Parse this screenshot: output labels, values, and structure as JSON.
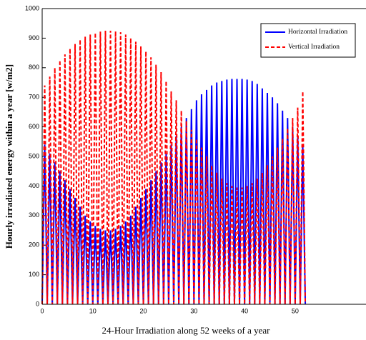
{
  "chart_data": {
    "type": "line",
    "x_label": "24-Hour Irradiation along 52 weeks of a year",
    "y_label": "Hourly irradiated energy within a year [w/m2]",
    "x": [
      0,
      0.5,
      1,
      1.5,
      2,
      2.5,
      3,
      3.5,
      4,
      4.5,
      5,
      5.5,
      6,
      6.5,
      7,
      7.5,
      8,
      8.5,
      9,
      9.5,
      10,
      10.5,
      11,
      11.5,
      12,
      12.5,
      13,
      13.5,
      14,
      14.5,
      15,
      15.5,
      16,
      16.5,
      17,
      17.5,
      18,
      18.5,
      19,
      19.5,
      20,
      20.5,
      21,
      21.5,
      22,
      22.5,
      23,
      23.5,
      24,
      24.5,
      25,
      25.5,
      26,
      26.5,
      27,
      27.5,
      28,
      28.5,
      29,
      29.5,
      30,
      30.5,
      31,
      31.5,
      32,
      32.5,
      33,
      33.5,
      34,
      34.5,
      35,
      35.5,
      36,
      36.5,
      37,
      37.5,
      38,
      38.5,
      39,
      39.5,
      40,
      40.5,
      41,
      41.5,
      42,
      42.5,
      43,
      43.5,
      44,
      44.5,
      45,
      45.5,
      46,
      46.5,
      47,
      47.5,
      48,
      48.5,
      49,
      49.5,
      50,
      50.5,
      51,
      51.5,
      52
    ],
    "series": [
      {
        "name": "Horizontal Irradiation",
        "color": "#0000ff",
        "dash": false,
        "values": [
          0,
          540,
          0,
          510,
          0,
          480,
          0,
          450,
          0,
          420,
          0,
          390,
          0,
          360,
          0,
          330,
          0,
          300,
          0,
          280,
          0,
          265,
          0,
          255,
          0,
          250,
          0,
          250,
          0,
          255,
          0,
          265,
          0,
          280,
          0,
          300,
          0,
          330,
          0,
          360,
          0,
          390,
          0,
          420,
          0,
          450,
          0,
          480,
          0,
          510,
          0,
          540,
          0,
          570,
          0,
          600,
          0,
          630,
          0,
          660,
          0,
          690,
          0,
          710,
          0,
          725,
          0,
          740,
          0,
          750,
          0,
          755,
          0,
          760,
          0,
          762,
          0,
          762,
          0,
          762,
          0,
          760,
          0,
          755,
          0,
          745,
          0,
          730,
          0,
          715,
          0,
          700,
          0,
          680,
          0,
          655,
          0,
          630,
          0,
          600,
          0,
          570,
          0,
          540,
          0
        ]
      },
      {
        "name": "Vertical Irradiation",
        "color": "#ff0000",
        "dash": true,
        "values": [
          0,
          740,
          0,
          770,
          0,
          800,
          0,
          825,
          0,
          845,
          0,
          865,
          0,
          880,
          0,
          895,
          0,
          905,
          0,
          912,
          0,
          918,
          0,
          922,
          0,
          925,
          0,
          925,
          0,
          923,
          0,
          920,
          0,
          912,
          0,
          900,
          0,
          888,
          0,
          872,
          0,
          855,
          0,
          835,
          0,
          810,
          0,
          785,
          0,
          755,
          0,
          720,
          0,
          690,
          0,
          655,
          0,
          620,
          0,
          590,
          0,
          560,
          0,
          530,
          0,
          500,
          0,
          470,
          0,
          445,
          0,
          425,
          0,
          410,
          0,
          400,
          0,
          395,
          0,
          395,
          0,
          400,
          0,
          410,
          0,
          425,
          0,
          445,
          0,
          470,
          0,
          500,
          0,
          530,
          0,
          560,
          0,
          595,
          0,
          630,
          0,
          665,
          0,
          720,
          0
        ]
      }
    ],
    "xlim": [
      0,
      64
    ],
    "xticks": [
      0,
      10,
      20,
      30,
      40,
      50
    ],
    "ylim": [
      0,
      1000
    ],
    "yticks": [
      0,
      100,
      200,
      300,
      400,
      500,
      600,
      700,
      800,
      900,
      1000
    ],
    "legend": "upper right"
  }
}
